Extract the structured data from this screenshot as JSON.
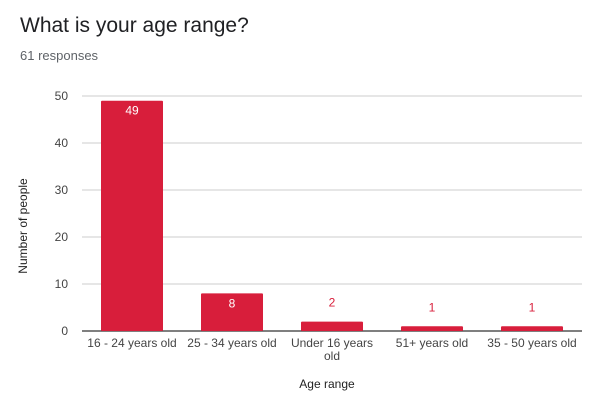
{
  "header": {
    "title": "What is your age range?",
    "subtitle": "61 responses"
  },
  "chart_data": {
    "type": "bar",
    "categories": [
      [
        "16 - 24 years old"
      ],
      [
        "25 - 34 years old"
      ],
      [
        "Under 16 years",
        "old"
      ],
      [
        "51+ years old"
      ],
      [
        "35 - 50 years old"
      ]
    ],
    "values": [
      49,
      8,
      2,
      1,
      1
    ],
    "data_labels": [
      "49",
      "8",
      "2",
      "1",
      "1"
    ],
    "xlabel": "Age range",
    "ylabel": "Number of people",
    "ylim": [
      0,
      50
    ],
    "yticks": [
      "0",
      "10",
      "20",
      "30",
      "40",
      "50"
    ],
    "grid": true,
    "legend": "none",
    "colors": {
      "bar": "#d81e3b",
      "label_inside": "#ffffff",
      "label_outside": "#d81e3b",
      "grid": "#cccccc",
      "baseline": "#333333"
    }
  }
}
